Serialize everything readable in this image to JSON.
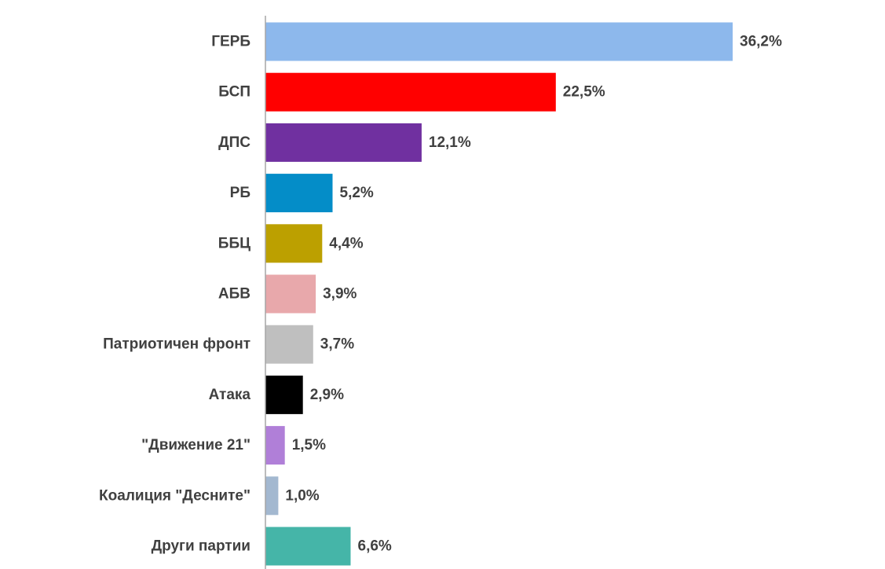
{
  "chart_data": {
    "type": "bar",
    "orientation": "horizontal",
    "categories": [
      "ГЕРБ",
      "БСП",
      "ДПС",
      "РБ",
      "ББЦ",
      "АБВ",
      "Патриотичен фронт",
      "Атака",
      "\"Движение 21\"",
      "Коалиция \"Десните\"",
      "Други партии"
    ],
    "values": [
      36.2,
      22.5,
      12.1,
      5.2,
      4.4,
      3.9,
      3.7,
      2.9,
      1.5,
      1.0,
      6.6
    ],
    "value_labels": [
      "36,2%",
      "22,5%",
      "12,1%",
      "5,2%",
      "4,4%",
      "3,9%",
      "3,7%",
      "2,9%",
      "1,5%",
      "1,0%",
      "6,6%"
    ],
    "colors": [
      "#8DB8EC",
      "#FF0000",
      "#7030A0",
      "#048DC8",
      "#BCA000",
      "#E8A8AB",
      "#BFBFBF",
      "#000000",
      "#B07FD8",
      "#A3B8D0",
      "#45B5A8"
    ],
    "title": "",
    "xlabel": "",
    "ylabel": "",
    "xlim": [
      0,
      36.2
    ],
    "grid": false,
    "legend": "none"
  }
}
